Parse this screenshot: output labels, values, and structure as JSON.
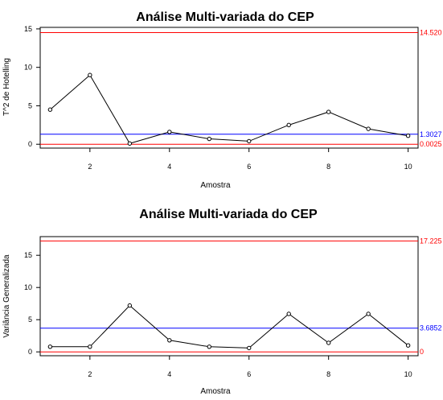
{
  "charts": [
    {
      "title": "Análise Multi-variada do CEP",
      "xlabel": "Amostra",
      "ylabel": "T^2 de Hotelling"
    },
    {
      "title": "Análise Multi-variada do CEP",
      "xlabel": "Amostra",
      "ylabel": "Variância Generalizada"
    }
  ],
  "chart_data": [
    {
      "type": "line",
      "title": "Análise Multi-variada do CEP",
      "xlabel": "Amostra",
      "ylabel": "T^2 de Hotelling",
      "x": [
        1,
        2,
        3,
        4,
        5,
        6,
        7,
        8,
        9,
        10
      ],
      "y": [
        4.5,
        9.0,
        0.1,
        1.6,
        0.7,
        0.4,
        2.5,
        4.2,
        2.0,
        1.1
      ],
      "xlim": [
        0.75,
        10.25
      ],
      "ylim": [
        -0.5,
        15.2
      ],
      "xticks": [
        2,
        4,
        6,
        8,
        10
      ],
      "yticks": [
        0,
        5,
        10,
        15
      ],
      "reference_lines": [
        {
          "label": "14.520",
          "value": 14.52,
          "color": "#ff0000"
        },
        {
          "label": "1.3027",
          "value": 1.3027,
          "color": "#0000ff"
        },
        {
          "label": "0.0025",
          "value": 0.0025,
          "color": "#ff0000"
        }
      ]
    },
    {
      "type": "line",
      "title": "Análise Multi-variada do CEP",
      "xlabel": "Amostra",
      "ylabel": "Variância Generalizada",
      "x": [
        1,
        2,
        3,
        4,
        5,
        6,
        7,
        8,
        9,
        10
      ],
      "y": [
        0.8,
        0.8,
        7.2,
        1.8,
        0.8,
        0.6,
        5.9,
        1.4,
        5.9,
        1.0
      ],
      "xlim": [
        0.75,
        10.25
      ],
      "ylim": [
        -0.6,
        17.9
      ],
      "xticks": [
        2,
        4,
        6,
        8,
        10
      ],
      "yticks": [
        0,
        5,
        10,
        15
      ],
      "reference_lines": [
        {
          "label": "17.225",
          "value": 17.225,
          "color": "#ff0000"
        },
        {
          "label": "3.6852",
          "value": 3.6852,
          "color": "#0000ff"
        },
        {
          "label": "0",
          "value": 0,
          "color": "#ff0000"
        }
      ]
    }
  ]
}
